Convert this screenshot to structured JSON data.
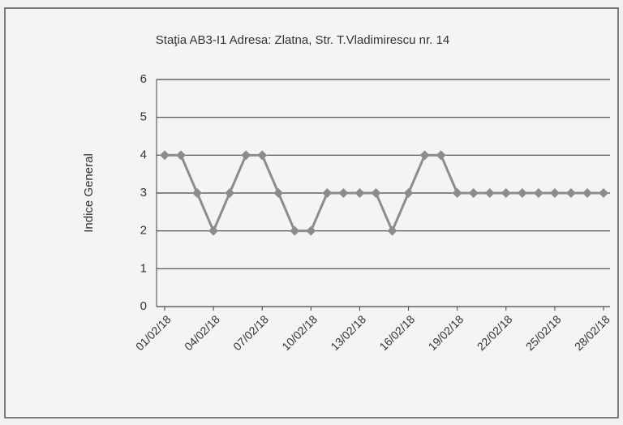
{
  "chart_data": {
    "type": "line",
    "title": "Staţia AB3-I1 Adresa: Zlatna, Str. T.Vladimirescu nr. 14",
    "ylabel": "Indice General",
    "categories": [
      "01/02/18",
      null,
      null,
      "04/02/18",
      null,
      null,
      "07/02/18",
      null,
      null,
      "10/02/18",
      null,
      null,
      "13/02/18",
      null,
      null,
      "16/02/18",
      null,
      null,
      "19/02/18",
      null,
      null,
      "22/02/18",
      null,
      null,
      "25/02/18",
      null,
      null,
      "28/02/18"
    ],
    "series": [
      {
        "name": "Indice General",
        "color": "#8c8c8c",
        "values": [
          4,
          4,
          3,
          2,
          3,
          4,
          4,
          3,
          2,
          2,
          3,
          3,
          3,
          3,
          2,
          3,
          4,
          4,
          3,
          3,
          3,
          3,
          3,
          3,
          3,
          3,
          3,
          3
        ]
      }
    ],
    "ylim": [
      0,
      6
    ],
    "yticks": [
      0,
      1,
      2,
      3,
      4,
      5,
      6
    ],
    "grid": true
  }
}
